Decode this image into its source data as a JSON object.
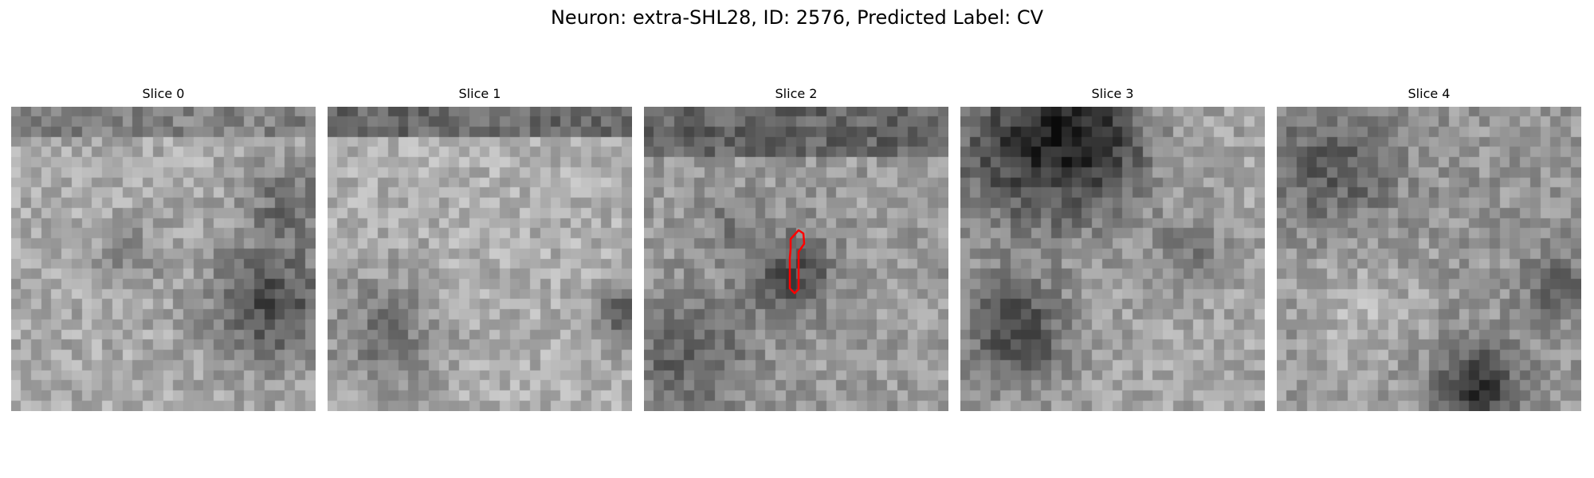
{
  "figure": {
    "title": "Neuron: extra-SHL28, ID: 2576, Predicted Label: CV"
  },
  "panels": [
    {
      "title": "Slice 0"
    },
    {
      "title": "Slice 1"
    },
    {
      "title": "Slice 2"
    },
    {
      "title": "Slice 3"
    },
    {
      "title": "Slice 4"
    }
  ],
  "contour": {
    "slice": "Slice 2",
    "color": "#ff0000"
  },
  "colormap": "gray"
}
